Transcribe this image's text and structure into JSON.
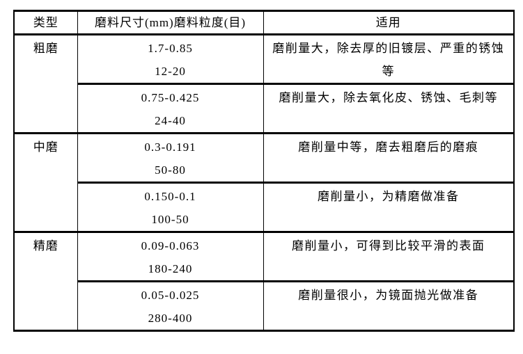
{
  "colors": {
    "background": "#ffffff",
    "border": "#000000",
    "text": "#000000"
  },
  "table": {
    "headers": [
      "类型",
      "磨料尺寸(mm)磨料粒度(目)",
      "适用"
    ],
    "groups": [
      {
        "type": "粗磨",
        "rows": [
          {
            "size": "1.7-0.85",
            "mesh": "12-20",
            "use": "磨削量大，除去厚的旧镀层、严重的锈蚀等"
          },
          {
            "size": "0.75-0.425",
            "mesh": "24-40",
            "use": "磨削量大，除去氧化皮、锈蚀、毛刺等"
          }
        ]
      },
      {
        "type": "中磨",
        "rows": [
          {
            "size": "0.3-0.191",
            "mesh": "50-80",
            "use": "磨削量中等，磨去粗磨后的磨痕"
          },
          {
            "size": "0.150-0.1",
            "mesh": "100-50",
            "use": "磨削量小，为精磨做准备"
          }
        ]
      },
      {
        "type": "精磨",
        "rows": [
          {
            "size": "0.09-0.063",
            "mesh": "180-240",
            "use": "磨削量小，可得到比较平滑的表面"
          },
          {
            "size": "0.05-0.025",
            "mesh": "280-400",
            "use": "磨削量很小，为镜面抛光做准备"
          }
        ]
      }
    ]
  }
}
